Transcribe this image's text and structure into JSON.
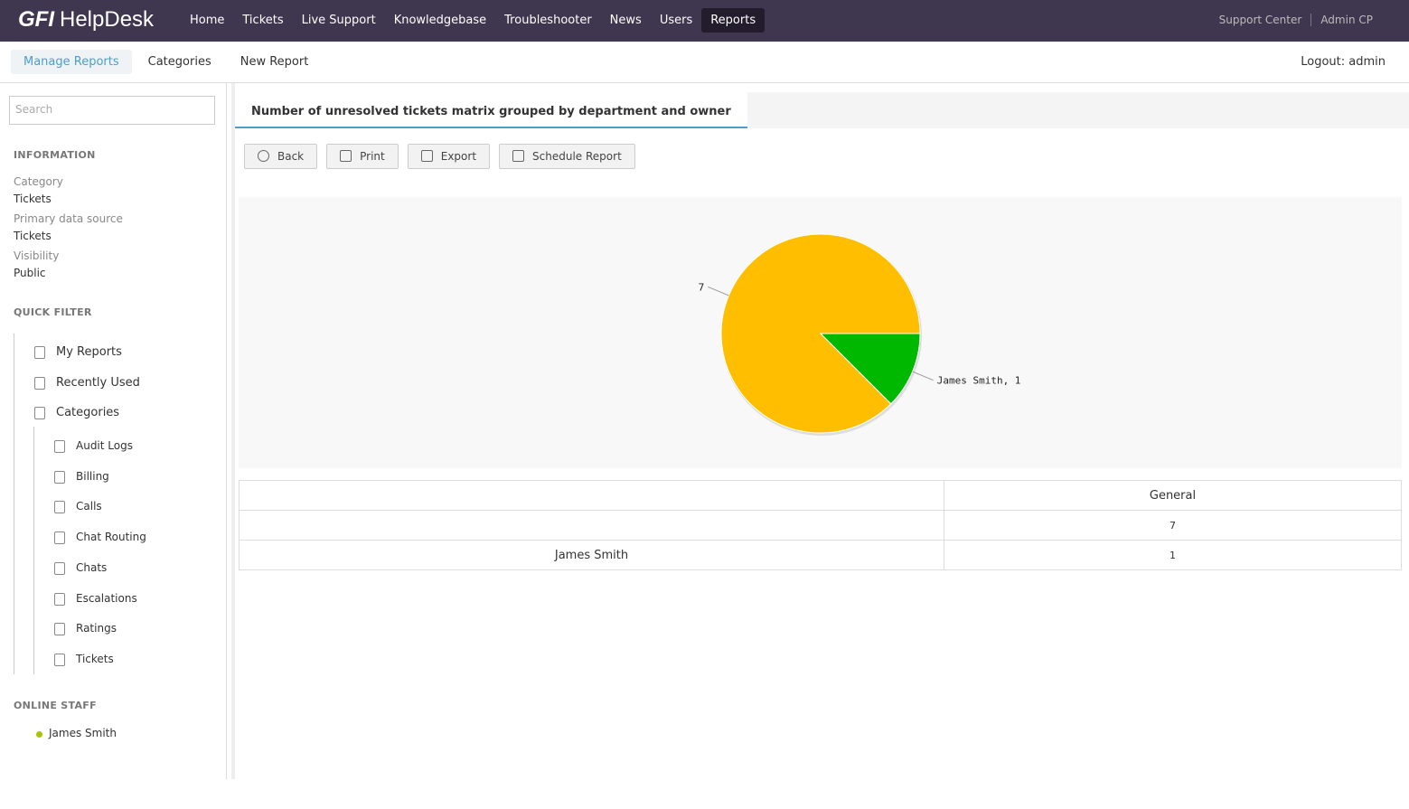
{
  "header": {
    "logo_brand": "GFI",
    "logo_product": "HelpDesk",
    "nav": [
      "Home",
      "Tickets",
      "Live Support",
      "Knowledgebase",
      "Troubleshooter",
      "News",
      "Users",
      "Reports"
    ],
    "right_links": [
      "Support Center",
      "Admin CP"
    ]
  },
  "subnav": {
    "tabs": [
      "Manage Reports",
      "Categories",
      "New Report"
    ],
    "logout": "Logout: admin"
  },
  "sidebar": {
    "search_placeholder": "Search",
    "information_heading": "INFORMATION",
    "info": [
      {
        "label": "Category",
        "value": "Tickets"
      },
      {
        "label": "Primary data source",
        "value": "Tickets"
      },
      {
        "label": "Visibility",
        "value": "Public"
      }
    ],
    "quick_filter_heading": "QUICK FILTER",
    "filters": [
      "My Reports",
      "Recently Used",
      "Categories"
    ],
    "categories": [
      "Audit Logs",
      "Billing",
      "Calls",
      "Chat Routing",
      "Chats",
      "Escalations",
      "Ratings",
      "Tickets"
    ],
    "online_staff_heading": "ONLINE STAFF",
    "staff": [
      "James Smith"
    ]
  },
  "report": {
    "tab": "Number of unresolved tickets matrix grouped by department and owner",
    "buttons": [
      "Back",
      "Print",
      "Export",
      "Schedule Report"
    ]
  },
  "chart_data": {
    "type": "pie",
    "categories": [
      null,
      "James Smith"
    ],
    "values": [
      7,
      1
    ],
    "value_labels": [
      "7",
      "James Smith, 1"
    ],
    "colors": [
      "#ffbf00",
      "#00b800"
    ]
  },
  "table": {
    "header": "General",
    "rows": [
      [
        null,
        7
      ],
      [
        "James Smith",
        1
      ]
    ]
  }
}
